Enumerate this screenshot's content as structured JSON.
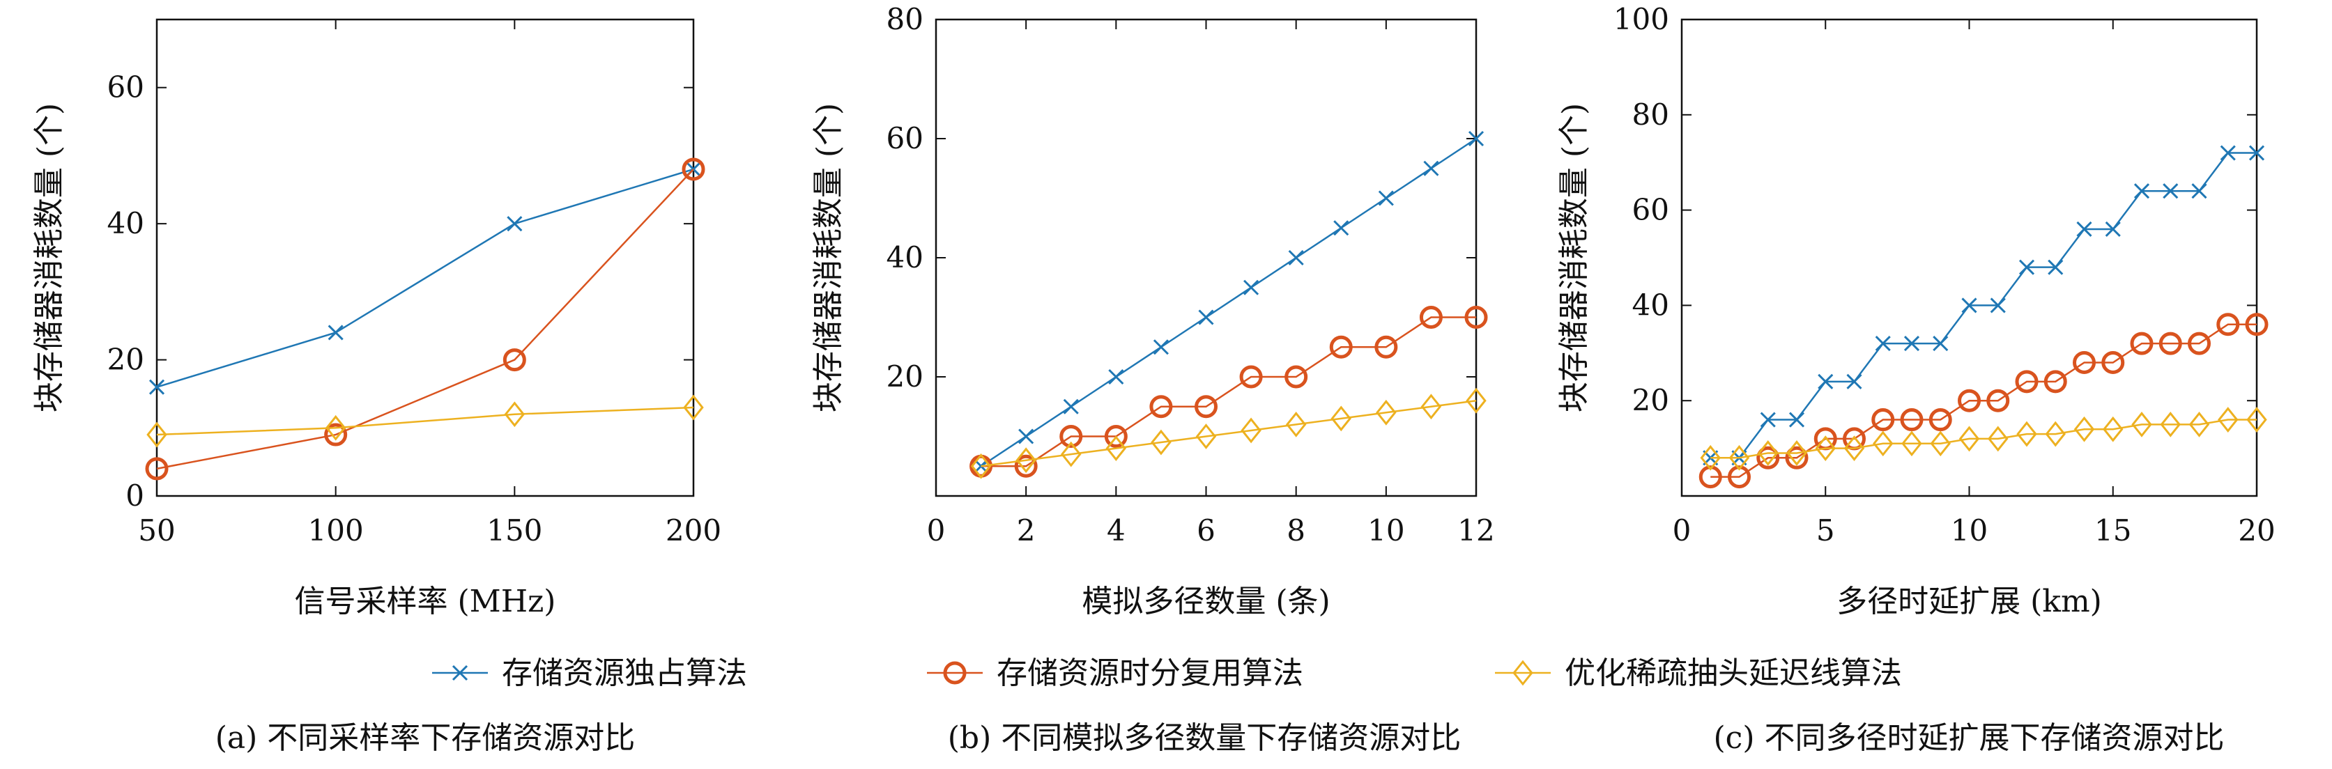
{
  "colors": {
    "blue": "#1f77b4",
    "orange": "#d9531e",
    "yellow": "#edb120"
  },
  "legend": {
    "items": [
      {
        "label": "存储资源独占算法",
        "color": "#1f77b4",
        "marker": "x"
      },
      {
        "label": "存储资源时分复用算法",
        "color": "#d9531e",
        "marker": "circle"
      },
      {
        "label": "优化稀疏抽头延迟线算法",
        "color": "#edb120",
        "marker": "diamond"
      }
    ]
  },
  "chart_data": [
    {
      "type": "line",
      "caption": "(a) 不同采样率下存储资源对比",
      "xlabel": "信号采样率 (MHz)",
      "ylabel": "块存储器消耗数量 (个)",
      "xlim": [
        50,
        200
      ],
      "ylim": [
        0,
        70
      ],
      "xticks": [
        50,
        100,
        150,
        200
      ],
      "yticks": [
        0,
        20,
        40,
        60
      ],
      "series": [
        {
          "name": "存储资源独占算法",
          "color": "#1f77b4",
          "marker": "x",
          "x": [
            50,
            100,
            150,
            200
          ],
          "y": [
            16,
            24,
            40,
            48
          ]
        },
        {
          "name": "存储资源时分复用算法",
          "color": "#d9531e",
          "marker": "circle",
          "x": [
            50,
            100,
            150,
            200
          ],
          "y": [
            4,
            9,
            20,
            48
          ]
        },
        {
          "name": "优化稀疏抽头延迟线算法",
          "color": "#edb120",
          "marker": "diamond",
          "x": [
            50,
            100,
            150,
            200
          ],
          "y": [
            9,
            10,
            12,
            13
          ]
        }
      ]
    },
    {
      "type": "line",
      "caption": "(b) 不同模拟多径数量下存储资源对比",
      "xlabel": "模拟多径数量 (条)",
      "ylabel": "块存储器消耗数量 (个)",
      "xlim": [
        0,
        12
      ],
      "ylim": [
        0,
        80
      ],
      "xticks": [
        0,
        2,
        4,
        6,
        8,
        10,
        12
      ],
      "yticks": [
        20,
        40,
        60,
        80
      ],
      "series": [
        {
          "name": "存储资源独占算法",
          "color": "#1f77b4",
          "marker": "x",
          "x": [
            1,
            2,
            3,
            4,
            5,
            6,
            7,
            8,
            9,
            10,
            11,
            12
          ],
          "y": [
            5,
            10,
            15,
            20,
            25,
            30,
            35,
            40,
            45,
            50,
            55,
            60
          ]
        },
        {
          "name": "存储资源时分复用算法",
          "color": "#d9531e",
          "marker": "circle",
          "x": [
            1,
            2,
            3,
            4,
            5,
            6,
            7,
            8,
            9,
            10,
            11,
            12
          ],
          "y": [
            5,
            5,
            10,
            10,
            15,
            15,
            20,
            20,
            25,
            25,
            30,
            30
          ]
        },
        {
          "name": "优化稀疏抽头延迟线算法",
          "color": "#edb120",
          "marker": "diamond",
          "x": [
            1,
            2,
            3,
            4,
            5,
            6,
            7,
            8,
            9,
            10,
            11,
            12
          ],
          "y": [
            5,
            6,
            7,
            8,
            9,
            10,
            11,
            12,
            13,
            14,
            15,
            16
          ]
        }
      ]
    },
    {
      "type": "line",
      "caption": "(c) 不同多径时延扩展下存储资源对比",
      "xlabel": "多径时延扩展 (km)",
      "ylabel": "块存储器消耗数量 (个)",
      "xlim": [
        0,
        20
      ],
      "ylim": [
        0,
        100
      ],
      "xticks": [
        0,
        5,
        10,
        15,
        20
      ],
      "yticks": [
        20,
        40,
        60,
        80,
        100
      ],
      "series": [
        {
          "name": "存储资源独占算法",
          "color": "#1f77b4",
          "marker": "x",
          "x": [
            1,
            2,
            3,
            4,
            5,
            6,
            7,
            8,
            9,
            10,
            11,
            12,
            13,
            14,
            15,
            16,
            17,
            18,
            19,
            20
          ],
          "y": [
            8,
            8,
            16,
            16,
            24,
            24,
            32,
            32,
            32,
            40,
            40,
            48,
            48,
            56,
            56,
            64,
            64,
            64,
            72,
            72
          ]
        },
        {
          "name": "存储资源时分复用算法",
          "color": "#d9531e",
          "marker": "circle",
          "x": [
            1,
            2,
            3,
            4,
            5,
            6,
            7,
            8,
            9,
            10,
            11,
            12,
            13,
            14,
            15,
            16,
            17,
            18,
            19,
            20
          ],
          "y": [
            4,
            4,
            8,
            8,
            12,
            12,
            16,
            16,
            16,
            20,
            20,
            24,
            24,
            28,
            28,
            32,
            32,
            32,
            36,
            36
          ]
        },
        {
          "name": "优化稀疏抽头延迟线算法",
          "color": "#edb120",
          "marker": "diamond",
          "x": [
            1,
            2,
            3,
            4,
            5,
            6,
            7,
            8,
            9,
            10,
            11,
            12,
            13,
            14,
            15,
            16,
            17,
            18,
            19,
            20
          ],
          "y": [
            8,
            8,
            9,
            9,
            10,
            10,
            11,
            11,
            11,
            12,
            12,
            13,
            13,
            14,
            14,
            15,
            15,
            15,
            16,
            16
          ]
        }
      ]
    }
  ]
}
